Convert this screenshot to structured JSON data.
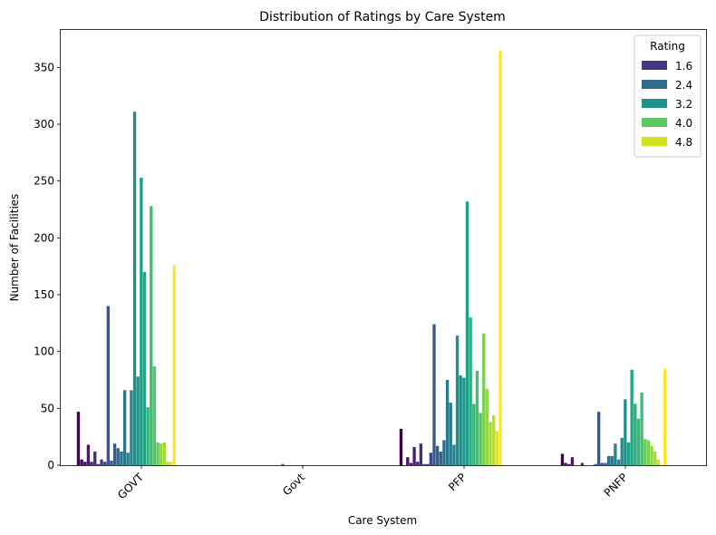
{
  "chart_data": {
    "type": "bar",
    "title": "Distribution of Ratings by Care System",
    "xlabel": "Care System",
    "ylabel": "Number of Facilities",
    "ylim": [
      0,
      383
    ],
    "yticks": [
      0,
      50,
      100,
      150,
      200,
      250,
      300,
      350
    ],
    "grid": false,
    "categories": [
      "GOVT",
      "Govt",
      "PFP",
      "PNFP"
    ],
    "legend": {
      "title": "Rating",
      "position": "top-right",
      "entries": [
        {
          "label": "1.6",
          "color": "#443983"
        },
        {
          "label": "2.4",
          "color": "#31688e"
        },
        {
          "label": "3.2",
          "color": "#21918c"
        },
        {
          "label": "4.0",
          "color": "#5ec962"
        },
        {
          "label": "4.8",
          "color": "#d2e21b"
        }
      ]
    },
    "hue_colors": [
      "#440154",
      "#46075a",
      "#471063",
      "#481769",
      "#48186a",
      "#482071",
      "#472777",
      "#472c7a",
      "#46307e",
      "#443a83",
      "#41437d",
      "#3e4989",
      "#3b528b",
      "#38598c",
      "#355f8d",
      "#32658e",
      "#2f6b8e",
      "#2c728e",
      "#2a788e",
      "#287d8e",
      "#26828e",
      "#24878e",
      "#228d8d",
      "#21918c",
      "#1f978b",
      "#1f9e89",
      "#22a785",
      "#2ab07f",
      "#35b779",
      "#42be71",
      "#54c568",
      "#67cc5c",
      "#7ad151",
      "#90d743",
      "#a5db36",
      "#bddf26",
      "#d2e21b",
      "#e7e419",
      "#fde725"
    ],
    "series_values": {
      "GOVT": [
        47,
        5,
        3,
        18,
        3,
        12,
        1,
        5,
        3,
        140,
        4,
        19,
        15,
        12,
        66,
        11,
        66,
        311,
        78,
        253,
        170,
        51,
        228,
        87,
        20,
        19,
        20,
        3,
        3,
        176
      ],
      "Govt": [
        0,
        0,
        0,
        0,
        0,
        0,
        0,
        0,
        0,
        0,
        0,
        0,
        0,
        1,
        0,
        0,
        0,
        0,
        0,
        0,
        0,
        0,
        0,
        0,
        0,
        0,
        0,
        0,
        0,
        0
      ],
      "PFP": [
        32,
        0,
        7,
        2,
        16,
        3,
        19,
        1,
        1,
        11,
        124,
        17,
        12,
        22,
        75,
        55,
        18,
        114,
        79,
        77,
        232,
        130,
        54,
        83,
        46,
        116,
        67,
        38,
        44,
        30,
        365
      ],
      "PNFP": [
        10,
        2,
        1,
        7,
        0,
        0,
        2,
        0,
        0,
        0,
        1,
        47,
        2,
        2,
        8,
        8,
        19,
        5,
        24,
        58,
        20,
        84,
        54,
        41,
        64,
        23,
        22,
        17,
        12,
        5,
        0,
        85
      ]
    }
  }
}
